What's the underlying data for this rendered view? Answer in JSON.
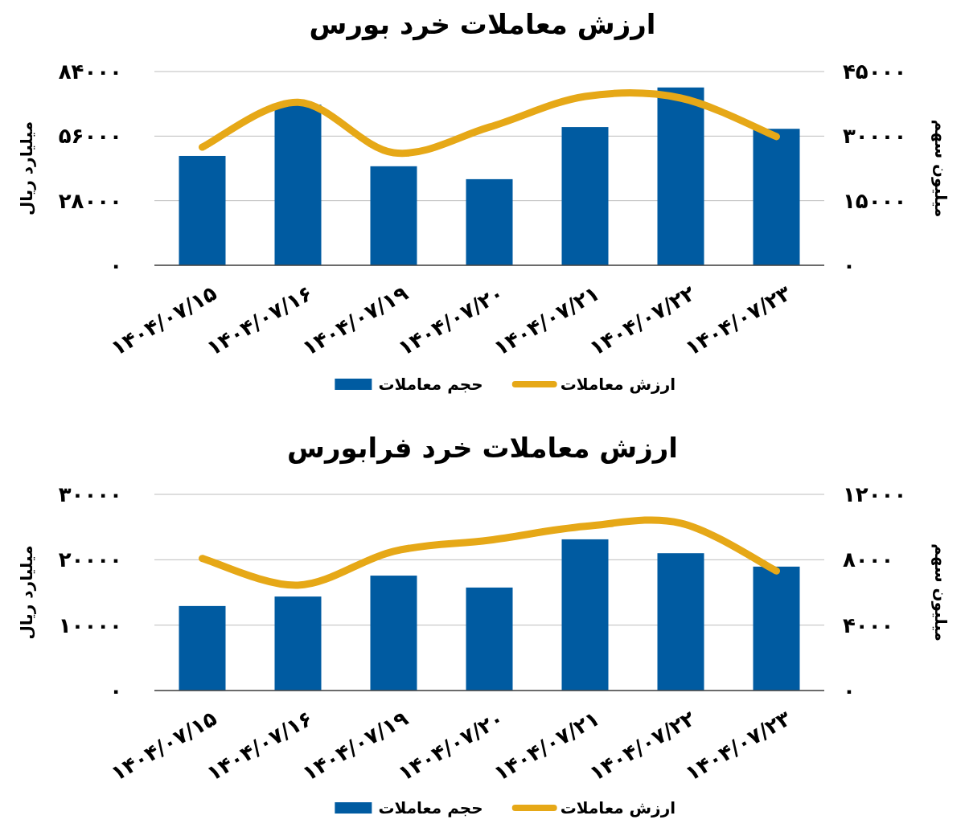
{
  "chart_data": [
    {
      "type": "bar",
      "title": "ارزش معاملات خرد بورس",
      "ylabel": "میلیارد ریال",
      "y2label": "میلیون سهم",
      "categories": [
        "۱۴۰۴/۰۷/۱۵",
        "۱۴۰۴/۰۷/۱۶",
        "۱۴۰۴/۰۷/۱۹",
        "۱۴۰۴/۰۷/۲۰",
        "۱۴۰۴/۰۷/۲۱",
        "۱۴۰۴/۰۷/۲۲",
        "۱۴۰۴/۰۷/۲۳"
      ],
      "series": [
        {
          "name": "ارزش معاملات",
          "type": "line",
          "color": "#e6a817",
          "values": [
            51200,
            70700,
            48800,
            59900,
            73200,
            72500,
            55800
          ]
        },
        {
          "name": "حجم معاملات",
          "axis": "y2",
          "color": "#005ba1",
          "values": [
            25400,
            37300,
            23000,
            20000,
            32100,
            41300,
            31700
          ]
        }
      ],
      "ylim": [
        0,
        84000
      ],
      "yticks": [
        {
          "value": 0,
          "label": "۰"
        },
        {
          "value": 28000,
          "label": "۲۸۰۰۰"
        },
        {
          "value": 56000,
          "label": "۵۶۰۰۰"
        },
        {
          "value": 84000,
          "label": "۸۴۰۰۰"
        }
      ],
      "y2lim": [
        0,
        45000
      ],
      "y2ticks": [
        {
          "value": 0,
          "label": "۰"
        },
        {
          "value": 15000,
          "label": "۱۵۰۰۰"
        },
        {
          "value": 30000,
          "label": "۳۰۰۰۰"
        },
        {
          "value": 45000,
          "label": "۴۵۰۰۰"
        }
      ],
      "grid": "y",
      "legend": "bottom"
    },
    {
      "type": "bar",
      "title": "ارزش معاملات خرد فرابورس",
      "ylabel": "میلیارد ریال",
      "y2label": "میلیون سهم",
      "categories": [
        "۱۴۰۴/۰۷/۱۵",
        "۱۴۰۴/۰۷/۱۶",
        "۱۴۰۴/۰۷/۱۹",
        "۱۴۰۴/۰۷/۲۰",
        "۱۴۰۴/۰۷/۲۱",
        "۱۴۰۴/۰۷/۲۲",
        "۱۴۰۴/۰۷/۲۳"
      ],
      "series": [
        {
          "name": "ارزش معاملات",
          "type": "line",
          "color": "#e6a817",
          "values": [
            20200,
            16100,
            21300,
            23000,
            25100,
            25600,
            18300
          ]
        },
        {
          "name": "حجم معاملات",
          "axis": "y2",
          "color": "#005ba1",
          "values": [
            5170,
            5750,
            7030,
            6300,
            9250,
            8400,
            7580
          ]
        }
      ],
      "ylim": [
        0,
        30000
      ],
      "yticks": [
        {
          "value": 0,
          "label": "۰"
        },
        {
          "value": 10000,
          "label": "۱۰۰۰۰"
        },
        {
          "value": 20000,
          "label": "۲۰۰۰۰"
        },
        {
          "value": 30000,
          "label": "۳۰۰۰۰"
        }
      ],
      "y2lim": [
        0,
        12000
      ],
      "y2ticks": [
        {
          "value": 0,
          "label": "۰"
        },
        {
          "value": 4000,
          "label": "۴۰۰۰"
        },
        {
          "value": 8000,
          "label": "۸۰۰۰"
        },
        {
          "value": 12000,
          "label": "۱۲۰۰۰"
        }
      ],
      "grid": "y",
      "legend": "bottom"
    }
  ]
}
